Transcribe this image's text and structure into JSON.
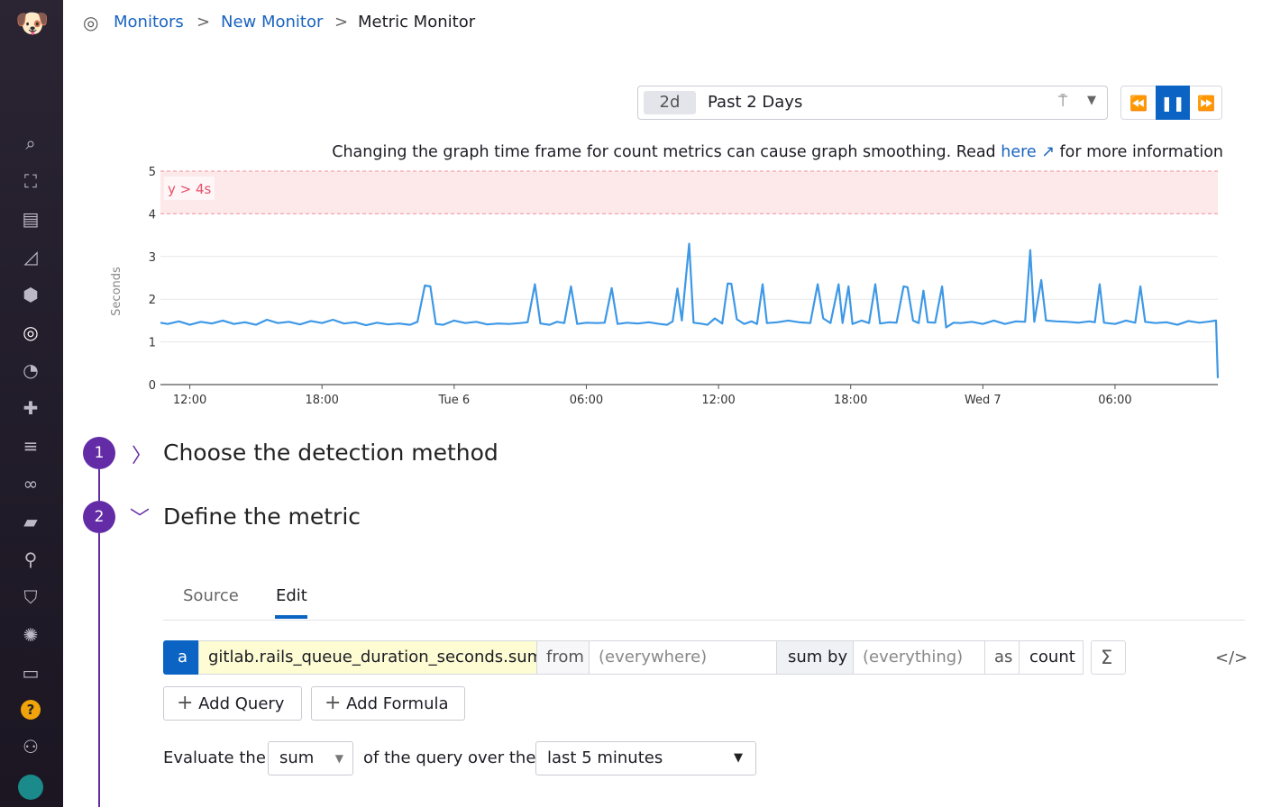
{
  "sidebar": {
    "items": [
      "logo",
      "search-icon",
      "binoculars-icon",
      "list-icon",
      "area-chart-icon",
      "hexagons-icon",
      "monitors-icon",
      "gauge-icon",
      "puzzle-icon",
      "filter-icon",
      "link-icon",
      "notebook-icon",
      "search-spark-icon",
      "shield-icon",
      "network-icon",
      "chat-icon",
      "help-icon",
      "team-icon",
      "avatar"
    ]
  },
  "breadcrumb": {
    "items": [
      "Monitors",
      "New Monitor",
      "Metric Monitor"
    ],
    "separator": ">"
  },
  "timepicker": {
    "chip": "2d",
    "label": "Past 2 Days"
  },
  "notice": {
    "before": "Changing the graph time frame for count metrics can cause graph smoothing. Read ",
    "link": "here",
    "after": " for more information"
  },
  "colors": {
    "accent": "#632ca6",
    "primary": "#0b64c4",
    "line": "#3d98e6",
    "threshold": "#e8506a",
    "threshold_fill": "#fde8ea"
  },
  "chart_data": {
    "type": "line",
    "ylabel": "Seconds",
    "ylim": [
      0,
      5
    ],
    "yticks": [
      "0",
      "1",
      "2",
      "3",
      "4",
      "5"
    ],
    "xticks": [
      {
        "t": "Mon 12:00",
        "label": "12:00"
      },
      {
        "t": "Mon 18:00",
        "label": "18:00"
      },
      {
        "t": "Tue 00:00",
        "label": "Tue 6"
      },
      {
        "t": "Tue 06:00",
        "label": "06:00"
      },
      {
        "t": "Tue 12:00",
        "label": "12:00"
      },
      {
        "t": "Tue 18:00",
        "label": "18:00"
      },
      {
        "t": "Wed 00:00",
        "label": "Wed 7"
      },
      {
        "t": "Wed 06:00",
        "label": "06:00"
      }
    ],
    "xrange": [
      "Mon 10:40",
      "Wed 10:40"
    ],
    "grid": true,
    "threshold": {
      "label": "y > 4s",
      "from": 4,
      "to": 5
    },
    "series": [
      {
        "points": [
          [
            "Mon 10:40",
            1.45
          ],
          [
            "Mon 11:00",
            1.42
          ],
          [
            "Mon 11:30",
            1.48
          ],
          [
            "Mon 12:00",
            1.4
          ],
          [
            "Mon 12:30",
            1.47
          ],
          [
            "Mon 13:00",
            1.43
          ],
          [
            "Mon 13:30",
            1.5
          ],
          [
            "Mon 14:00",
            1.42
          ],
          [
            "Mon 14:30",
            1.46
          ],
          [
            "Mon 15:00",
            1.4
          ],
          [
            "Mon 15:30",
            1.52
          ],
          [
            "Mon 16:00",
            1.44
          ],
          [
            "Mon 16:30",
            1.47
          ],
          [
            "Mon 17:00",
            1.41
          ],
          [
            "Mon 17:30",
            1.49
          ],
          [
            "Mon 18:00",
            1.44
          ],
          [
            "Mon 18:30",
            1.52
          ],
          [
            "Mon 19:00",
            1.43
          ],
          [
            "Mon 19:30",
            1.46
          ],
          [
            "Mon 20:00",
            1.39
          ],
          [
            "Mon 20:30",
            1.45
          ],
          [
            "Mon 21:00",
            1.41
          ],
          [
            "Mon 21:30",
            1.43
          ],
          [
            "Mon 22:00",
            1.4
          ],
          [
            "Mon 22:20",
            1.47
          ],
          [
            "Mon 22:40",
            2.32
          ],
          [
            "Mon 22:55",
            2.3
          ],
          [
            "Mon 23:10",
            1.42
          ],
          [
            "Mon 23:30",
            1.4
          ],
          [
            "Tue 00:00",
            1.5
          ],
          [
            "Tue 00:30",
            1.44
          ],
          [
            "Tue 01:00",
            1.47
          ],
          [
            "Tue 01:30",
            1.41
          ],
          [
            "Tue 02:00",
            1.43
          ],
          [
            "Tue 02:30",
            1.42
          ],
          [
            "Tue 03:00",
            1.44
          ],
          [
            "Tue 03:20",
            1.46
          ],
          [
            "Tue 03:40",
            2.35
          ],
          [
            "Tue 03:55",
            1.43
          ],
          [
            "Tue 04:20",
            1.4
          ],
          [
            "Tue 04:40",
            1.47
          ],
          [
            "Tue 05:00",
            1.44
          ],
          [
            "Tue 05:18",
            2.3
          ],
          [
            "Tue 05:35",
            1.42
          ],
          [
            "Tue 06:00",
            1.45
          ],
          [
            "Tue 06:30",
            1.44
          ],
          [
            "Tue 06:50",
            1.45
          ],
          [
            "Tue 07:09",
            2.26
          ],
          [
            "Tue 07:25",
            1.42
          ],
          [
            "Tue 07:50",
            1.45
          ],
          [
            "Tue 08:20",
            1.43
          ],
          [
            "Tue 08:50",
            1.46
          ],
          [
            "Tue 09:20",
            1.42
          ],
          [
            "Tue 09:40",
            1.4
          ],
          [
            "Tue 09:55",
            1.48
          ],
          [
            "Tue 10:08",
            2.25
          ],
          [
            "Tue 10:20",
            1.5
          ],
          [
            "Tue 10:40",
            3.3
          ],
          [
            "Tue 10:52",
            1.45
          ],
          [
            "Tue 11:10",
            1.43
          ],
          [
            "Tue 11:30",
            1.4
          ],
          [
            "Tue 11:50",
            1.55
          ],
          [
            "Tue 12:10",
            1.43
          ],
          [
            "Tue 12:25",
            2.37
          ],
          [
            "Tue 12:35",
            2.36
          ],
          [
            "Tue 12:50",
            1.53
          ],
          [
            "Tue 13:10",
            1.42
          ],
          [
            "Tue 13:30",
            1.48
          ],
          [
            "Tue 13:45",
            1.42
          ],
          [
            "Tue 14:00",
            2.35
          ],
          [
            "Tue 14:12",
            1.44
          ],
          [
            "Tue 14:40",
            1.46
          ],
          [
            "Tue 15:10",
            1.5
          ],
          [
            "Tue 15:40",
            1.46
          ],
          [
            "Tue 16:10",
            1.44
          ],
          [
            "Tue 16:30",
            2.35
          ],
          [
            "Tue 16:45",
            1.55
          ],
          [
            "Tue 17:05",
            1.44
          ],
          [
            "Tue 17:27",
            2.35
          ],
          [
            "Tue 17:38",
            1.44
          ],
          [
            "Tue 17:54",
            2.3
          ],
          [
            "Tue 18:05",
            1.42
          ],
          [
            "Tue 18:30",
            1.5
          ],
          [
            "Tue 18:50",
            1.44
          ],
          [
            "Tue 19:07",
            2.35
          ],
          [
            "Tue 19:20",
            1.43
          ],
          [
            "Tue 19:45",
            1.46
          ],
          [
            "Tue 20:05",
            1.45
          ],
          [
            "Tue 20:24",
            2.3
          ],
          [
            "Tue 20:35",
            2.28
          ],
          [
            "Tue 20:50",
            1.5
          ],
          [
            "Tue 21:05",
            1.44
          ],
          [
            "Tue 21:18",
            2.2
          ],
          [
            "Tue 21:30",
            1.46
          ],
          [
            "Tue 21:50",
            1.45
          ],
          [
            "Tue 22:09",
            2.3
          ],
          [
            "Tue 22:20",
            1.34
          ],
          [
            "Tue 22:40",
            1.45
          ],
          [
            "Tue 23:00",
            1.44
          ],
          [
            "Tue 23:30",
            1.47
          ],
          [
            "Wed 00:00",
            1.42
          ],
          [
            "Wed 00:30",
            1.5
          ],
          [
            "Wed 01:00",
            1.42
          ],
          [
            "Wed 01:30",
            1.48
          ],
          [
            "Wed 01:55",
            1.47
          ],
          [
            "Wed 02:09",
            3.15
          ],
          [
            "Wed 02:20",
            1.47
          ],
          [
            "Wed 02:39",
            2.45
          ],
          [
            "Wed 02:52",
            1.5
          ],
          [
            "Wed 03:20",
            1.48
          ],
          [
            "Wed 03:50",
            1.47
          ],
          [
            "Wed 04:20",
            1.45
          ],
          [
            "Wed 04:50",
            1.48
          ],
          [
            "Wed 05:05",
            1.46
          ],
          [
            "Wed 05:18",
            2.35
          ],
          [
            "Wed 05:30",
            1.45
          ],
          [
            "Wed 06:00",
            1.42
          ],
          [
            "Wed 06:30",
            1.5
          ],
          [
            "Wed 06:55",
            1.45
          ],
          [
            "Wed 07:09",
            2.3
          ],
          [
            "Wed 07:22",
            1.47
          ],
          [
            "Wed 07:50",
            1.44
          ],
          [
            "Wed 08:20",
            1.46
          ],
          [
            "Wed 08:50",
            1.4
          ],
          [
            "Wed 09:20",
            1.49
          ],
          [
            "Wed 09:50",
            1.45
          ],
          [
            "Wed 10:20",
            1.48
          ],
          [
            "Wed 10:35",
            1.5
          ],
          [
            "Wed 10:40",
            0.15
          ]
        ]
      }
    ]
  },
  "steps": [
    {
      "number": "1",
      "title": "Choose the detection method",
      "expanded": false
    },
    {
      "number": "2",
      "title": "Define the metric",
      "expanded": true
    }
  ],
  "tabs": [
    {
      "label": "Source",
      "active": false
    },
    {
      "label": "Edit",
      "active": true
    }
  ],
  "query": {
    "letter": "a",
    "metric": "gitlab.rails_queue_duration_seconds.sum",
    "from_label": "from",
    "from_placeholder": "(everywhere)",
    "agg_label": "sum by",
    "group_placeholder": "(everything)",
    "as_label": "as",
    "as_value": "count",
    "sigma": "Σ",
    "code": "</>"
  },
  "buttons": {
    "add_query": "Add Query",
    "add_formula": "Add Formula"
  },
  "evaluate": {
    "prefix": "Evaluate the",
    "aggregation": "sum",
    "middle": "of the query over the",
    "window": "last 5 minutes"
  }
}
